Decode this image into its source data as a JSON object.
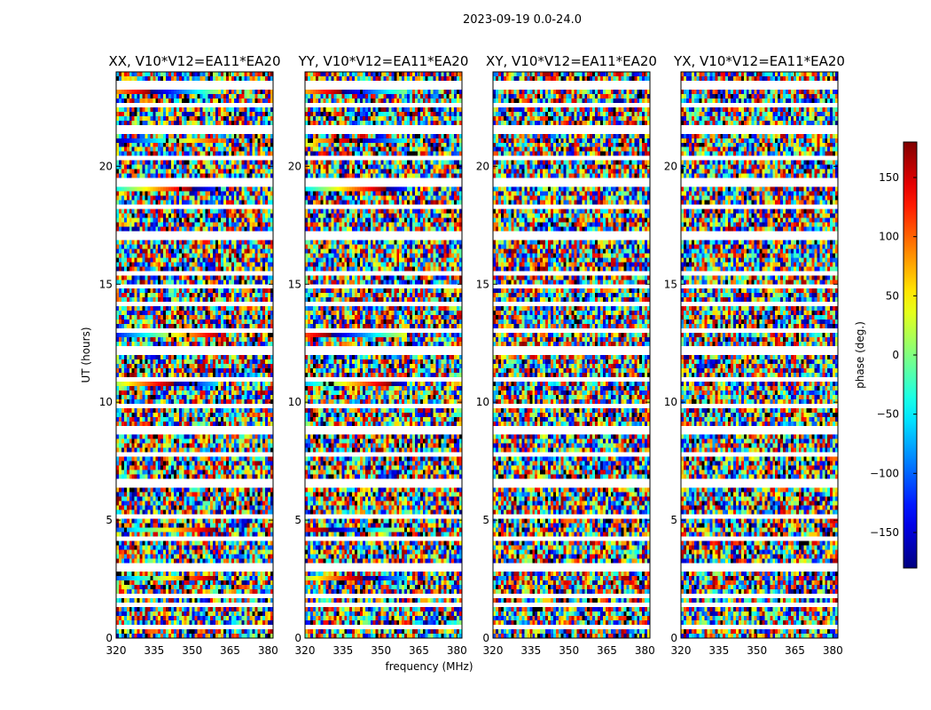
{
  "figure": {
    "title": "2023-09-19 0.0-24.0",
    "xlabel": "frequency (MHz)",
    "ylabel": "UT (hours)"
  },
  "colorbar": {
    "label": "phase (deg.)",
    "range": [
      -180,
      180
    ],
    "ticks": [
      "150",
      "100",
      "50",
      "0",
      "−50",
      "−100",
      "−150"
    ],
    "tick_values": [
      150,
      100,
      50,
      0,
      -50,
      -100,
      -150
    ],
    "colormap": "jet"
  },
  "chart_data": {
    "type": "heatmap",
    "x_range_mhz": [
      320,
      382
    ],
    "y_range_hours": [
      0,
      24
    ],
    "x_ticks": [
      "320",
      "335",
      "350",
      "365",
      "380"
    ],
    "x_tick_values": [
      320,
      335,
      350,
      365,
      380
    ],
    "y_ticks": [
      "0",
      "5",
      "10",
      "15",
      "20"
    ],
    "y_tick_values": [
      0,
      5,
      10,
      15,
      20
    ],
    "z_label": "phase (deg.)",
    "z_range": [
      -180,
      180
    ],
    "panels": [
      {
        "title": "XX, V10*V12=EA11*EA20"
      },
      {
        "title": "YY, V10*V12=EA11*EA20"
      },
      {
        "title": "XY, V10*V12=EA11*EA20"
      },
      {
        "title": "YX, V10*V12=EA11*EA20"
      }
    ]
  }
}
